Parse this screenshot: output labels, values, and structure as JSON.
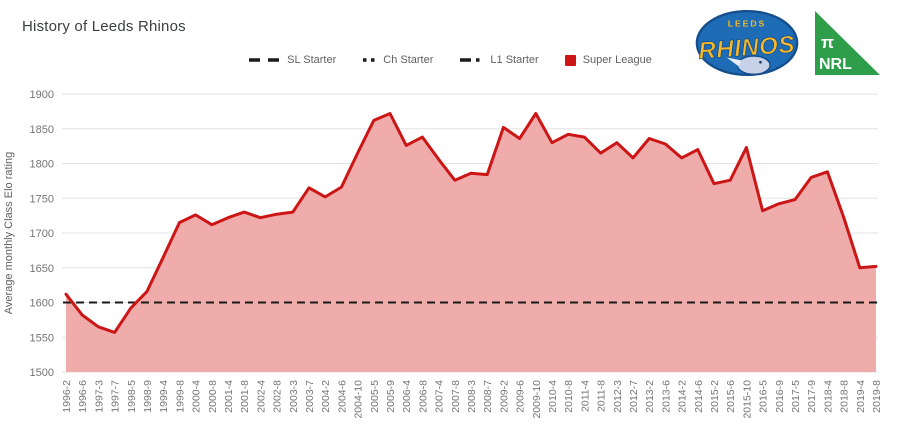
{
  "chart_data": {
    "type": "area",
    "title": "History of Leeds Rhinos",
    "xlabel": "",
    "ylabel": "Average monthly Class Elo rating",
    "ylim": [
      1500,
      1900
    ],
    "yticks": [
      1500,
      1550,
      1600,
      1650,
      1700,
      1750,
      1800,
      1850,
      1900
    ],
    "grid": true,
    "legend_position": "top",
    "categories": [
      "1996-2",
      "1996-6",
      "1997-3",
      "1997-7",
      "1998-5",
      "1998-9",
      "1999-4",
      "1999-8",
      "2000-4",
      "2000-8",
      "2001-4",
      "2001-8",
      "2002-4",
      "2002-8",
      "2003-3",
      "2003-7",
      "2004-2",
      "2004-6",
      "2004-10",
      "2005-5",
      "2005-9",
      "2006-4",
      "2006-8",
      "2007-4",
      "2007-8",
      "2008-3",
      "2008-7",
      "2009-2",
      "2009-6",
      "2009-10",
      "2010-4",
      "2010-8",
      "2011-4",
      "2011-8",
      "2012-3",
      "2012-7",
      "2013-2",
      "2013-6",
      "2014-2",
      "2014-6",
      "2015-2",
      "2015-6",
      "2015-10",
      "2016-5",
      "2016-9",
      "2017-5",
      "2017-9",
      "2018-4",
      "2018-8",
      "2019-4",
      "2019-8"
    ],
    "series": [
      {
        "name": "Super League",
        "color": "#cc1616",
        "fill_color": "#f0abab",
        "values": [
          1612,
          1582,
          1565,
          1557,
          1592,
          1616,
          1665,
          1715,
          1726,
          1712,
          1722,
          1730,
          1722,
          1727,
          1730,
          1765,
          1752,
          1766,
          1815,
          1862,
          1872,
          1826,
          1838,
          1806,
          1776,
          1786,
          1784,
          1852,
          1836,
          1872,
          1830,
          1842,
          1838,
          1815,
          1830,
          1808,
          1836,
          1828,
          1808,
          1820,
          1771,
          1776,
          1823,
          1732,
          1742,
          1748,
          1780,
          1788,
          1723,
          1650,
          1652
        ]
      }
    ],
    "reference_lines": [
      {
        "name": "SL Starter",
        "value": 1600,
        "style": "dashed",
        "color": "#1a1a1a"
      }
    ]
  },
  "legend": {
    "items": [
      {
        "label": "SL Starter",
        "marker": "dashed",
        "color": "#1a1a1a"
      },
      {
        "label": "Ch Starter",
        "marker": "dotted",
        "color": "#1a1a1a"
      },
      {
        "label": "L1 Starter",
        "marker": "dash-dot",
        "color": "#1a1a1a"
      },
      {
        "label": "Super League",
        "marker": "square",
        "color": "#cc1616"
      }
    ]
  },
  "logos": {
    "rhinos": {
      "top_text": "LEEDS",
      "main_text": "RHINOS",
      "oval_color": "#1e6cb5",
      "outline_color": "#144e8c",
      "text_color": "#f9b824",
      "rhino_color": "#c7d2e8"
    },
    "nrl": {
      "pi_text": "π",
      "name_text": "NRL",
      "triangle_color": "#2e9e4a",
      "text_color": "#ffffff"
    }
  },
  "axis_style": {
    "tick_color": "#757575",
    "grid_color": "#e3e3e3",
    "axis_title_color": "#616161"
  }
}
